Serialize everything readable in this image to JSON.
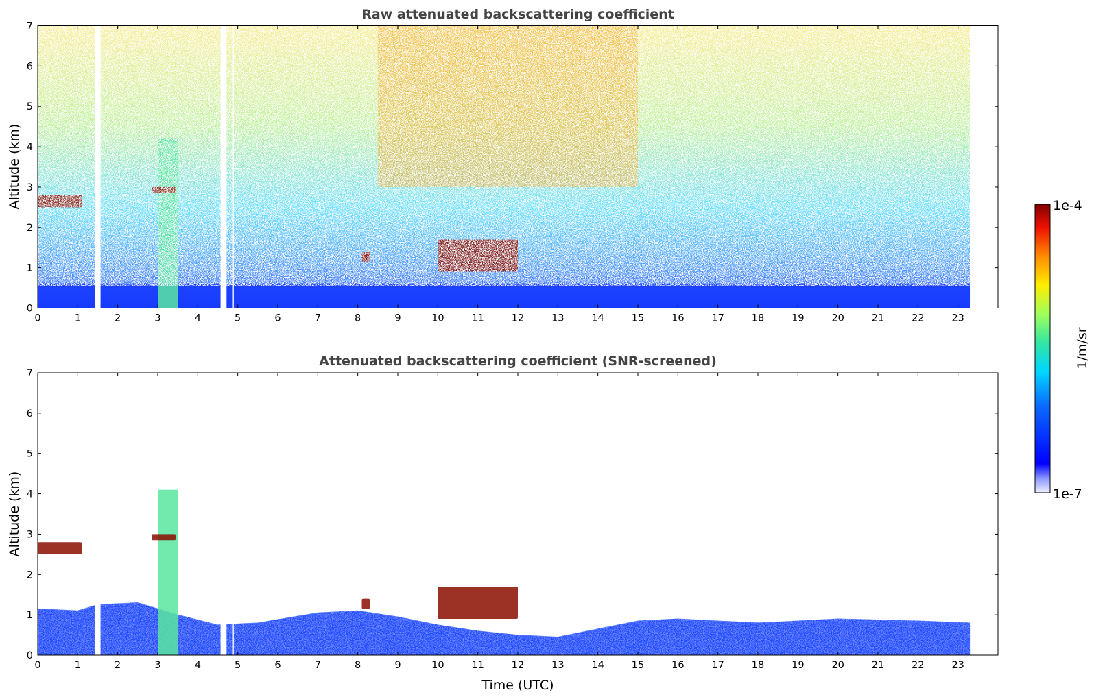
{
  "chart_data": [
    {
      "type": "heatmap",
      "title": "Raw attenuated backscattering coefficient",
      "xlabel": "",
      "ylabel": "Altitude (km)",
      "xlim": [
        0,
        24
      ],
      "ylim": [
        0,
        7
      ],
      "x_ticks": [
        "0",
        "1",
        "2",
        "3",
        "4",
        "5",
        "6",
        "7",
        "8",
        "9",
        "10",
        "11",
        "12",
        "13",
        "14",
        "15",
        "16",
        "17",
        "18",
        "19",
        "20",
        "21",
        "22",
        "23"
      ],
      "y_ticks": [
        "0",
        "1",
        "2",
        "3",
        "4",
        "5",
        "6",
        "7"
      ],
      "data_end_time": 23.3,
      "missing_data_gaps": [
        [
          1.43,
          1.57
        ],
        [
          4.57,
          4.72
        ],
        [
          4.86,
          4.9
        ]
      ],
      "features": [
        {
          "name": "near-surface layer",
          "x": [
            0,
            23.3
          ],
          "y": [
            0,
            0.6
          ],
          "level": "low"
        },
        {
          "name": "aerosol column",
          "x": [
            3.0,
            3.5
          ],
          "y": [
            0,
            4.2
          ],
          "level": "medium"
        },
        {
          "name": "cloud",
          "x": [
            0,
            1.1
          ],
          "y": [
            2.5,
            2.8
          ],
          "level": "max"
        },
        {
          "name": "cloud",
          "x": [
            2.85,
            3.45
          ],
          "y": [
            2.85,
            3.0
          ],
          "level": "max"
        },
        {
          "name": "cloud",
          "x": [
            8.1,
            8.3
          ],
          "y": [
            1.15,
            1.4
          ],
          "level": "max"
        },
        {
          "name": "cloud",
          "x": [
            10.0,
            12.0
          ],
          "y": [
            0.9,
            1.7
          ],
          "level": "max"
        },
        {
          "name": "noise maximum (daytime)",
          "x": [
            8.5,
            15.0
          ],
          "y": [
            3.0,
            7.0
          ],
          "level": "high"
        }
      ]
    },
    {
      "type": "heatmap",
      "title": "Attenuated backscattering coefficient (SNR-screened)",
      "xlabel": "Time (UTC)",
      "ylabel": "Altitude (km)",
      "xlim": [
        0,
        24
      ],
      "ylim": [
        0,
        7
      ],
      "x_ticks": [
        "0",
        "1",
        "2",
        "3",
        "4",
        "5",
        "6",
        "7",
        "8",
        "9",
        "10",
        "11",
        "12",
        "13",
        "14",
        "15",
        "16",
        "17",
        "18",
        "19",
        "20",
        "21",
        "22",
        "23"
      ],
      "y_ticks": [
        "0",
        "1",
        "2",
        "3",
        "4",
        "5",
        "6",
        "7"
      ],
      "data_end_time": 23.3,
      "missing_data_gaps": [
        [
          1.43,
          1.57
        ],
        [
          4.57,
          4.72
        ],
        [
          4.86,
          4.9
        ]
      ],
      "boundary_layer_top_km": [
        [
          0,
          1.15
        ],
        [
          1,
          1.1
        ],
        [
          1.5,
          1.25
        ],
        [
          2.5,
          1.3
        ],
        [
          3.5,
          1.0
        ],
        [
          4.5,
          0.75
        ],
        [
          5.5,
          0.8
        ],
        [
          7,
          1.05
        ],
        [
          8,
          1.1
        ],
        [
          9,
          0.95
        ],
        [
          10,
          0.75
        ],
        [
          11,
          0.6
        ],
        [
          12,
          0.5
        ],
        [
          13,
          0.45
        ],
        [
          14,
          0.65
        ],
        [
          15,
          0.85
        ],
        [
          16,
          0.9
        ],
        [
          17,
          0.85
        ],
        [
          18,
          0.8
        ],
        [
          20,
          0.9
        ],
        [
          22,
          0.85
        ],
        [
          23.3,
          0.8
        ]
      ],
      "features": [
        {
          "name": "aerosol column",
          "x": [
            3.0,
            3.5
          ],
          "y": [
            0,
            4.1
          ],
          "level": "medium"
        },
        {
          "name": "cloud",
          "x": [
            0,
            1.1
          ],
          "y": [
            2.5,
            2.8
          ],
          "level": "max"
        },
        {
          "name": "cloud",
          "x": [
            2.85,
            3.45
          ],
          "y": [
            2.85,
            3.0
          ],
          "level": "max"
        },
        {
          "name": "cloud",
          "x": [
            8.1,
            8.3
          ],
          "y": [
            1.15,
            1.4
          ],
          "level": "max"
        },
        {
          "name": "cloud",
          "x": [
            10.0,
            12.0
          ],
          "y": [
            0.9,
            1.7
          ],
          "level": "max"
        }
      ]
    }
  ],
  "colorbar": {
    "max_label": "1e-4",
    "min_label": "1e-7",
    "unit_label": "1/m/sr",
    "colormap": "jet"
  }
}
